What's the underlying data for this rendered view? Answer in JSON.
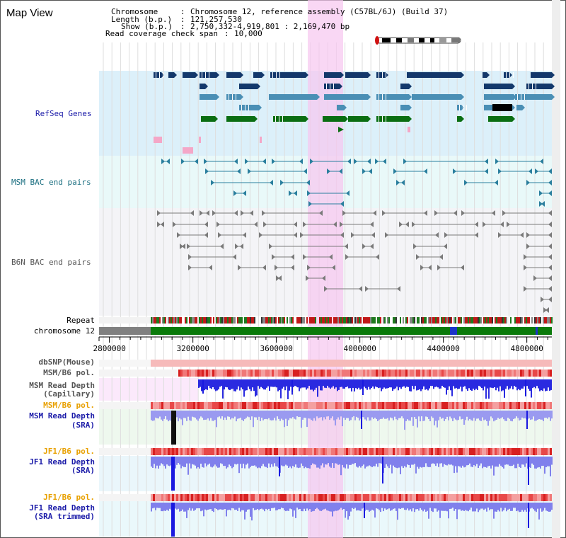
{
  "window": {
    "title": "Map View"
  },
  "info": {
    "chromosome_label": "Chromosome",
    "chromosome_value": "Chromosome 12, reference assembly (C57BL/6J) (Build 37)",
    "length_label": "Length (b.p.)",
    "length_value": "121,257,530",
    "show_label": "Show (b.p.)",
    "show_value": "2,750,332-4,919,801 : 2,169,470 bp",
    "span_label": "Read coverage check span",
    "span_value": "10,000"
  },
  "tracks": {
    "refseq": "RefSeq Genes",
    "msm_bac": "MSM BAC end pairs",
    "b6n_bac": "B6N BAC end pairs",
    "repeat": "Repeat",
    "chromosome": "chromosome 12"
  },
  "axis": {
    "ticks": [
      2800000,
      3200000,
      3600000,
      4000000,
      4400000,
      4800000
    ],
    "range": [
      2750332,
      4919801
    ]
  },
  "lower_tracks": [
    {
      "id": "dbsnp",
      "label": [
        "dbSNP(Mouse)"
      ],
      "color": "#555555"
    },
    {
      "id": "msm_pol1",
      "label": [
        "MSM/B6 pol."
      ],
      "color": "#555555"
    },
    {
      "id": "msm_depth_cap",
      "label": [
        "MSM Read Depth",
        "(Capillary)"
      ],
      "color": "#555555"
    },
    {
      "id": "msm_pol2",
      "label": [
        "MSM/B6 pol."
      ],
      "color": "#e8a000"
    },
    {
      "id": "msm_depth_sra",
      "label": [
        "MSM Read Depth",
        "(SRA)"
      ],
      "color": "#1a1aa8"
    },
    {
      "id": "jf1_pol1",
      "label": [
        "JF1/B6 pol."
      ],
      "color": "#e8a000"
    },
    {
      "id": "jf1_depth_sra",
      "label": [
        "JF1 Read Depth",
        "(SRA)"
      ],
      "color": "#1a1aa8"
    },
    {
      "id": "jf1_pol2",
      "label": [
        "JF1/B6 pol."
      ],
      "color": "#e8a000"
    },
    {
      "id": "jf1_depth_trim",
      "label": [
        "JF1 Read Depth",
        "(SRA trimmed)"
      ],
      "color": "#1a1aa8"
    }
  ],
  "colors": {
    "gene_dark": "#13386b",
    "gene_mid": "#4a8fb5",
    "gene_green": "#0a6e12",
    "gene_pink": "#f4a7c7",
    "msm_bac": "#2a7f9e",
    "b6n_bac": "#7a7a7a",
    "highlight": "#f7c6ef",
    "depth_blue": "#4040e8",
    "pol_red": "#e83030"
  }
}
